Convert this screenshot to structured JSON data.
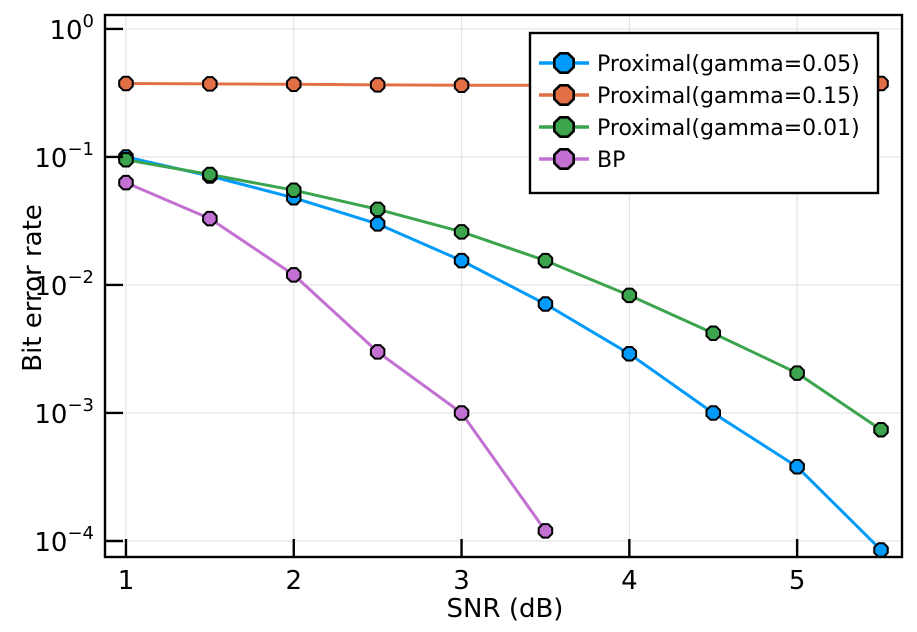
{
  "figure": {
    "background": "#ffffff",
    "frame_color": "#000000",
    "grid_color": "#e4e4e4"
  },
  "chart_data": {
    "type": "line",
    "title": "",
    "xlabel": "SNR (dB)",
    "ylabel": "Bit error rate",
    "x_ticks": [
      1,
      2,
      3,
      4,
      5
    ],
    "y_tick_exponents": [
      0,
      -1,
      -2,
      -3,
      -4
    ],
    "xlim": [
      0.875,
      5.625
    ],
    "ylim_log10": [
      -4.125,
      0.109
    ],
    "grid": true,
    "yscale": "log10",
    "marker": "octagon",
    "legend_position": "top-right",
    "series": [
      {
        "name": "Proximal(gamma=0.05)",
        "color": "#009AFA",
        "x": [
          1,
          1.5,
          2,
          2.5,
          3,
          3.5,
          4,
          4.5,
          5,
          5.5
        ],
        "y": [
          0.1,
          0.071,
          0.048,
          0.03,
          0.0155,
          0.0071,
          0.0029,
          0.001,
          0.00038,
          8.5e-05
        ]
      },
      {
        "name": "Proximal(gamma=0.15)",
        "color": "#E36F47",
        "x": [
          1,
          1.5,
          2,
          2.5,
          3,
          3.5,
          4,
          4.5,
          5,
          5.5
        ],
        "y": [
          0.375,
          0.372,
          0.37,
          0.366,
          0.363,
          0.363,
          0.365,
          0.368,
          0.37,
          0.375
        ]
      },
      {
        "name": "Proximal(gamma=0.01)",
        "color": "#3DA44E",
        "x": [
          1,
          1.5,
          2,
          2.5,
          3,
          3.5,
          4,
          4.5,
          5,
          5.5
        ],
        "y": [
          0.095,
          0.073,
          0.055,
          0.039,
          0.026,
          0.0155,
          0.0083,
          0.0042,
          0.00205,
          0.00074
        ]
      },
      {
        "name": "BP",
        "color": "#C271D2",
        "x": [
          1,
          1.5,
          2,
          2.5,
          3,
          3.5
        ],
        "y": [
          0.063,
          0.033,
          0.012,
          0.003,
          0.001,
          0.00012
        ]
      }
    ]
  }
}
